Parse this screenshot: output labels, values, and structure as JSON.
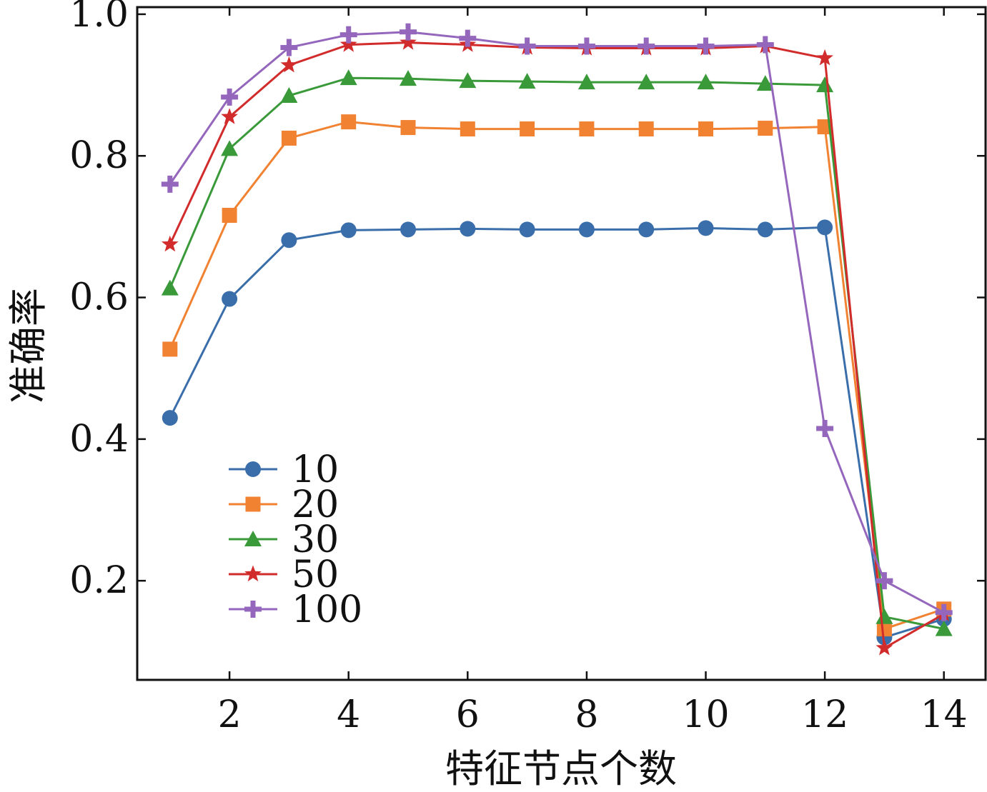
{
  "chart_data": {
    "type": "line",
    "title": "",
    "xlabel": "特征节点个数",
    "ylabel": "准确率",
    "xlim": [
      0.45,
      14.7
    ],
    "ylim": [
      0.06,
      1.01
    ],
    "xticks": [
      2,
      4,
      6,
      8,
      10,
      12,
      14
    ],
    "xtick_labels": [
      "2",
      "4",
      "6",
      "8",
      "10",
      "12",
      "14"
    ],
    "yticks": [
      0.2,
      0.4,
      0.6,
      0.8,
      1.0
    ],
    "ytick_labels": [
      "0.2",
      "0.4",
      "0.6",
      "0.8",
      "1.0"
    ],
    "grid": false,
    "legend_position": "lower-left",
    "x": [
      1,
      2,
      3,
      4,
      5,
      6,
      7,
      8,
      9,
      10,
      11,
      12,
      13,
      14
    ],
    "series": [
      {
        "name": "10",
        "color": "#3a6eaa",
        "marker": "circle",
        "values": [
          0.43,
          0.598,
          0.681,
          0.695,
          0.696,
          0.697,
          0.696,
          0.696,
          0.696,
          0.698,
          0.696,
          0.699,
          0.12,
          0.146
        ]
      },
      {
        "name": "20",
        "color": "#f08232",
        "marker": "square",
        "values": [
          0.527,
          0.716,
          0.825,
          0.848,
          0.84,
          0.838,
          0.838,
          0.838,
          0.838,
          0.838,
          0.839,
          0.841,
          0.132,
          0.16
        ]
      },
      {
        "name": "30",
        "color": "#3a9a3a",
        "marker": "triangle",
        "values": [
          0.613,
          0.81,
          0.885,
          0.91,
          0.909,
          0.906,
          0.905,
          0.904,
          0.904,
          0.904,
          0.902,
          0.9,
          0.149,
          0.132
        ]
      },
      {
        "name": "50",
        "color": "#d22b2b",
        "marker": "star",
        "values": [
          0.675,
          0.855,
          0.928,
          0.957,
          0.96,
          0.957,
          0.953,
          0.952,
          0.952,
          0.952,
          0.955,
          0.938,
          0.105,
          0.153
        ]
      },
      {
        "name": "100",
        "color": "#9467bd",
        "marker": "plus",
        "values": [
          0.76,
          0.883,
          0.953,
          0.971,
          0.975,
          0.966,
          0.955,
          0.955,
          0.955,
          0.955,
          0.957,
          0.415,
          0.2,
          0.155
        ]
      }
    ]
  }
}
